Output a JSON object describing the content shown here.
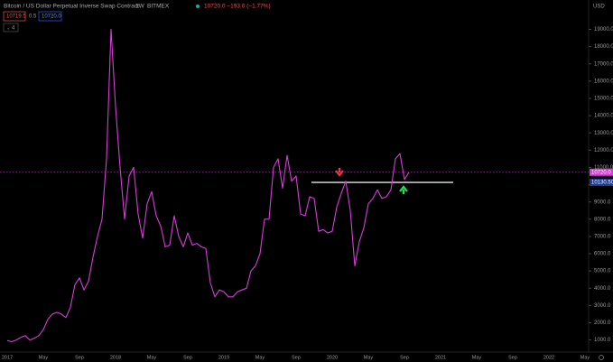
{
  "chart_data": {
    "type": "line",
    "title": "Bitcoin / US Dollar Perpetual Inverse Swap Contract",
    "interval": "1W",
    "exchange": "BITMEX",
    "change_text": "10720.0 −193.0 (−1.77%)",
    "bid": "10719.5",
    "spread": "0.5",
    "ask": "10720.0",
    "indicator_count": "4",
    "currency": "USD",
    "last_price": {
      "value": 10720,
      "label": "10720.0"
    },
    "support_level": {
      "value": 10130.5,
      "label": "10130.50"
    },
    "categories": [
      "2017",
      null,
      null,
      null,
      null,
      null,
      null,
      null,
      "May",
      null,
      null,
      null,
      null,
      null,
      null,
      null,
      "Sep",
      null,
      null,
      null,
      null,
      null,
      null,
      null,
      "2018",
      null,
      null,
      null,
      null,
      null,
      null,
      null,
      "May",
      null,
      null,
      null,
      null,
      null,
      null,
      null,
      "Sep",
      null,
      null,
      null,
      null,
      null,
      null,
      null,
      "2019",
      null,
      null,
      null,
      null,
      null,
      null,
      null,
      "May",
      null,
      null,
      null,
      null,
      null,
      null,
      null,
      "Sep",
      null,
      null,
      null,
      null,
      null,
      null,
      null,
      "2020",
      null,
      null,
      null,
      null,
      null,
      null,
      null,
      "May",
      null,
      null,
      null,
      null,
      null,
      null,
      null,
      "Sep",
      null,
      null,
      null,
      null,
      null,
      null,
      null,
      "2021",
      null,
      null,
      null,
      null,
      null,
      null,
      null,
      "May",
      null,
      null,
      null,
      null,
      null,
      null,
      null,
      "Sep",
      null,
      null,
      null,
      null,
      null,
      null,
      null,
      "2022",
      null,
      null,
      null,
      null,
      null,
      null,
      null,
      "May",
      null
    ],
    "series": [
      {
        "name": "BTCUSD",
        "color": "#d63cd6",
        "values": [
          970,
          900,
          1000,
          1150,
          1250,
          1000,
          1100,
          1250,
          1600,
          2200,
          2500,
          2600,
          2500,
          2300,
          2900,
          4200,
          4600,
          3900,
          4400,
          5800,
          7000,
          8000,
          11500,
          19000,
          14500,
          11000,
          8000,
          10500,
          11000,
          8300,
          6900,
          8900,
          9600,
          8200,
          7600,
          6400,
          6500,
          8200,
          7000,
          6400,
          7200,
          6500,
          6600,
          6400,
          6300,
          4300,
          3500,
          3900,
          3800,
          3500,
          3500,
          3800,
          3900,
          4000,
          5000,
          5300,
          6000,
          8000,
          8000,
          11000,
          11500,
          9800,
          11700,
          10200,
          10500,
          8300,
          8200,
          9300,
          9200,
          7300,
          7400,
          7200,
          7300,
          8700,
          9500,
          10200,
          8500,
          5300,
          6700,
          7500,
          8900,
          9200,
          9700,
          9200,
          9300,
          9700,
          11500,
          11800,
          10300,
          10720,
          null,
          null,
          null,
          null,
          null,
          null,
          null,
          null,
          null,
          null,
          null,
          null,
          null,
          null,
          null,
          null,
          null,
          null,
          null,
          null,
          null,
          null,
          null,
          null,
          null,
          null,
          null,
          null,
          null,
          null,
          null,
          null,
          null,
          null,
          null,
          null,
          null,
          null,
          null,
          null
        ]
      }
    ],
    "ylim": [
      300,
      20700
    ],
    "yticks": [
      {
        "value": 1000,
        "label": "1000.0"
      },
      {
        "value": 2000,
        "label": "2000.0"
      },
      {
        "value": 3000,
        "label": "3000.0"
      },
      {
        "value": 4000,
        "label": "4000.0"
      },
      {
        "value": 5000,
        "label": "5000.0"
      },
      {
        "value": 6000,
        "label": "6000.0"
      },
      {
        "value": 7000,
        "label": "7000.0"
      },
      {
        "value": 8000,
        "label": "8000.0"
      },
      {
        "value": 9000,
        "label": "9000.0"
      },
      {
        "value": 10000,
        "label": "10000.0"
      },
      {
        "value": 11000,
        "label": "11000.0"
      },
      {
        "value": 12000,
        "label": "12000.0"
      },
      {
        "value": 13000,
        "label": "13000.0"
      },
      {
        "value": 14000,
        "label": "14000.0"
      },
      {
        "value": 15000,
        "label": "15000.0"
      },
      {
        "value": 16000,
        "label": "16000.0"
      },
      {
        "value": 17000,
        "label": "17000.0"
      },
      {
        "value": 18000,
        "label": "18000.0"
      },
      {
        "value": 19000,
        "label": "19000.0"
      }
    ],
    "grid": false
  }
}
